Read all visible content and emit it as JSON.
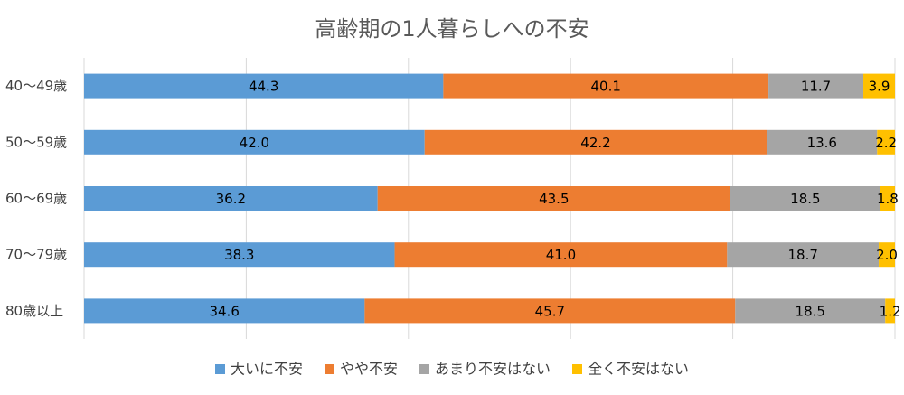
{
  "chart_data": {
    "type": "bar",
    "orientation": "horizontal",
    "stacked": "percent",
    "title": "高齢期の1人暮らしへの不安",
    "categories": [
      "40～49歳",
      "50～59歳",
      "60～69歳",
      "70～79歳",
      "80歳以上"
    ],
    "series": [
      {
        "name": "大いに不安",
        "color": "#5b9bd5",
        "values": [
          44.3,
          42.0,
          36.2,
          38.3,
          34.6
        ],
        "labels": [
          "44.3",
          "42.0",
          "36.2",
          "38.3",
          "34.6"
        ]
      },
      {
        "name": "やや不安",
        "color": "#ed7d31",
        "values": [
          40.1,
          42.2,
          43.5,
          41.0,
          45.7
        ],
        "labels": [
          "40.1",
          "42.2",
          "43.5",
          "41.0",
          "45.7"
        ]
      },
      {
        "name": "あまり不安はない",
        "color": "#a5a5a5",
        "values": [
          11.7,
          13.6,
          18.5,
          18.7,
          18.5
        ],
        "labels": [
          "11.7",
          "13.6",
          "18.5",
          "18.7",
          "18.5"
        ]
      },
      {
        "name": "全く不安はない",
        "color": "#ffc000",
        "values": [
          3.9,
          2.2,
          1.8,
          2.0,
          1.2
        ],
        "labels": [
          "3.9",
          "2.2",
          "1.8",
          "2.0",
          "1.2"
        ]
      }
    ],
    "xlim": [
      0,
      100
    ],
    "grid": true,
    "legend": "bottom"
  }
}
